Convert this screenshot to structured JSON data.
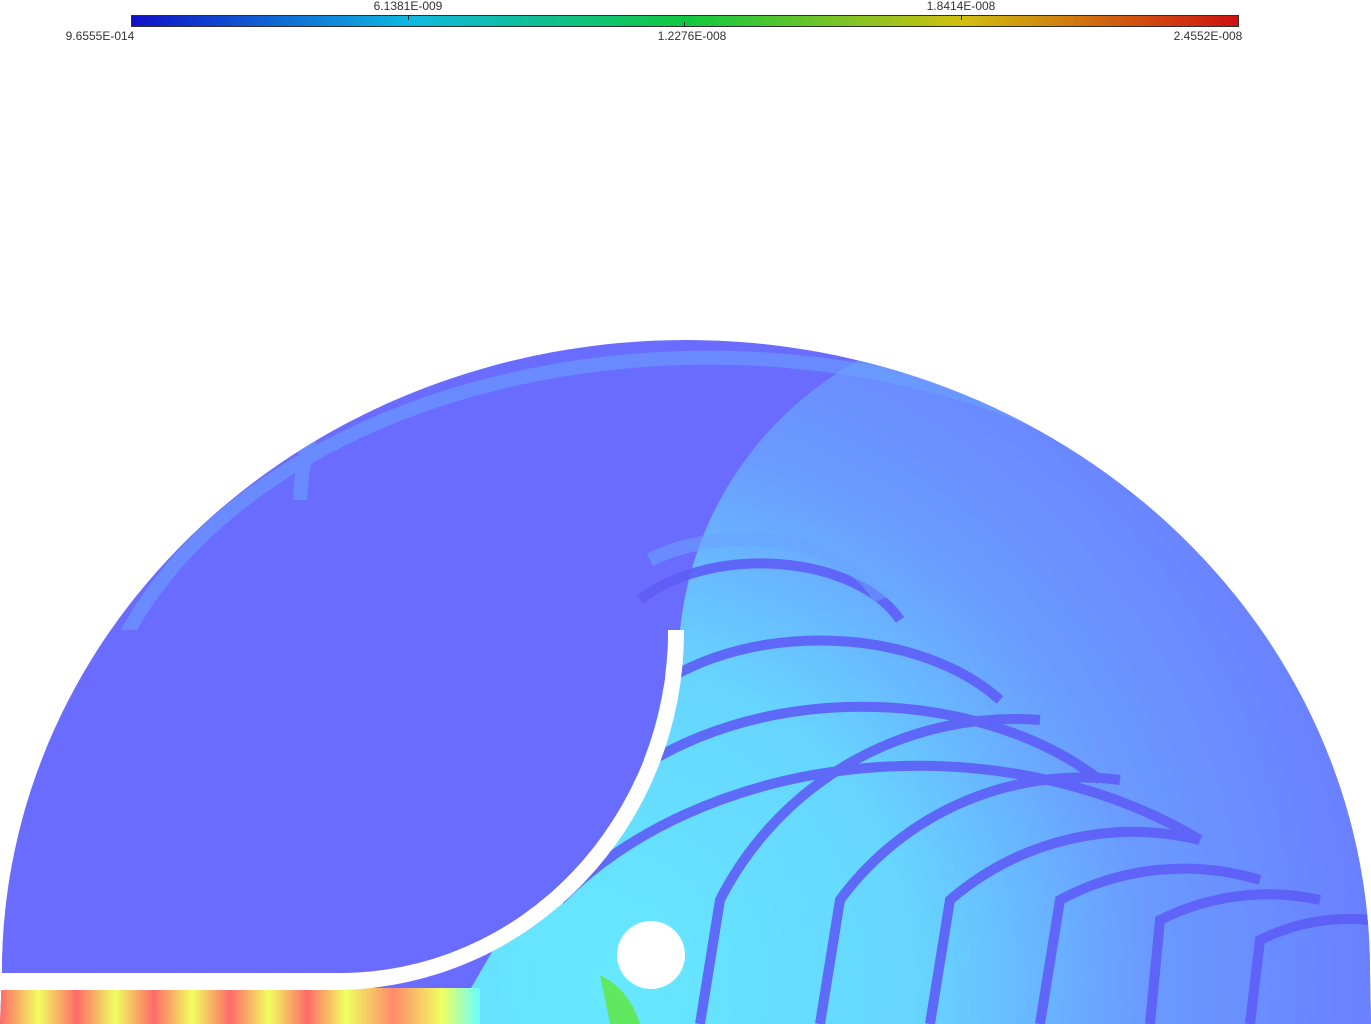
{
  "colorbar": {
    "top_labels": [
      "6.1381E-009",
      "1.8414E-008"
    ],
    "bottom_labels": [
      "9.6555E-014",
      "1.2276E-008",
      "2.4552E-008"
    ],
    "gradient_colors": [
      "#1010c8",
      "#10b8e0",
      "#10c840",
      "#d0c010",
      "#d01010"
    ]
  },
  "field_colors": {
    "background": "#6a6cff",
    "light_blue": "#6aa4ff",
    "cyan": "#66ffff",
    "yellow": "#f0ff60",
    "red": "#ff6a6a",
    "green": "#60e860",
    "trough": "#5e5ef8",
    "obstacle": "#ffffff"
  },
  "objects": {
    "domain": "semicircular-domain",
    "barrier": "curved-barrier",
    "scatterer": "circular-scatterer"
  }
}
